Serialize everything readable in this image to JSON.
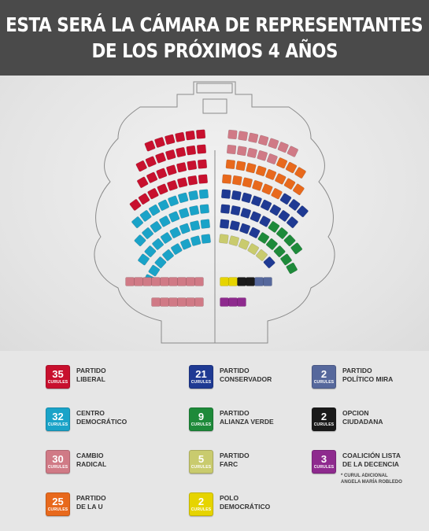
{
  "header": {
    "title_line1": "ESTA SERÁ LA CÁMARA DE REPRESENTANTES",
    "title_line2": "DE LOS PRÓXIMOS 4 AÑOS"
  },
  "seat_unit": "CURULES",
  "parties": [
    {
      "id": "liberal",
      "name_line1": "PARTIDO",
      "name_line2": "LIBERAL",
      "seats": "35",
      "color": "#c8102e"
    },
    {
      "id": "centro-democratico",
      "name_line1": "CENTRO",
      "name_line2": "DEMOCRÁTICO",
      "seats": "32",
      "color": "#1aa3c8"
    },
    {
      "id": "cambio-radical",
      "name_line1": "CAMBIO",
      "name_line2": "RADICAL",
      "seats": "30",
      "color": "#d07a86"
    },
    {
      "id": "partido-de-la-u",
      "name_line1": "PARTIDO",
      "name_line2": "DE LA U",
      "seats": "25",
      "color": "#e8691c"
    },
    {
      "id": "conservador",
      "name_line1": "PARTIDO",
      "name_line2": "CONSERVADOR",
      "seats": "21",
      "color": "#1f3a93"
    },
    {
      "id": "alianza-verde",
      "name_line1": "PARTIDO",
      "name_line2": "ALIANZA VERDE",
      "seats": "9",
      "color": "#1e8a3a"
    },
    {
      "id": "farc",
      "name_line1": "PARTIDO",
      "name_line2": "FARC",
      "seats": "5",
      "color": "#c9cb6e"
    },
    {
      "id": "polo-democratico",
      "name_line1": "POLO",
      "name_line2": "DEMOCRÁTICO",
      "seats": "2",
      "color": "#e6d400"
    },
    {
      "id": "mira",
      "name_line1": "PARTIDO",
      "name_line2": "POLÍTICO MIRA",
      "seats": "2",
      "color": "#56689c"
    },
    {
      "id": "opcion-ciudadana",
      "name_line1": "OPCION",
      "name_line2": "CIUDADANA",
      "seats": "2",
      "color": "#1a1a1a"
    },
    {
      "id": "coalicion-decencia",
      "name_line1": "COALICIÓN LISTA",
      "name_line2": "DE LA DECENCIA",
      "seats": "3",
      "color": "#8e2a8e"
    }
  ],
  "note": {
    "line1": "* CURUL ADICIONAL",
    "line2": "ANGELA MARÍA ROBLEDO"
  }
}
